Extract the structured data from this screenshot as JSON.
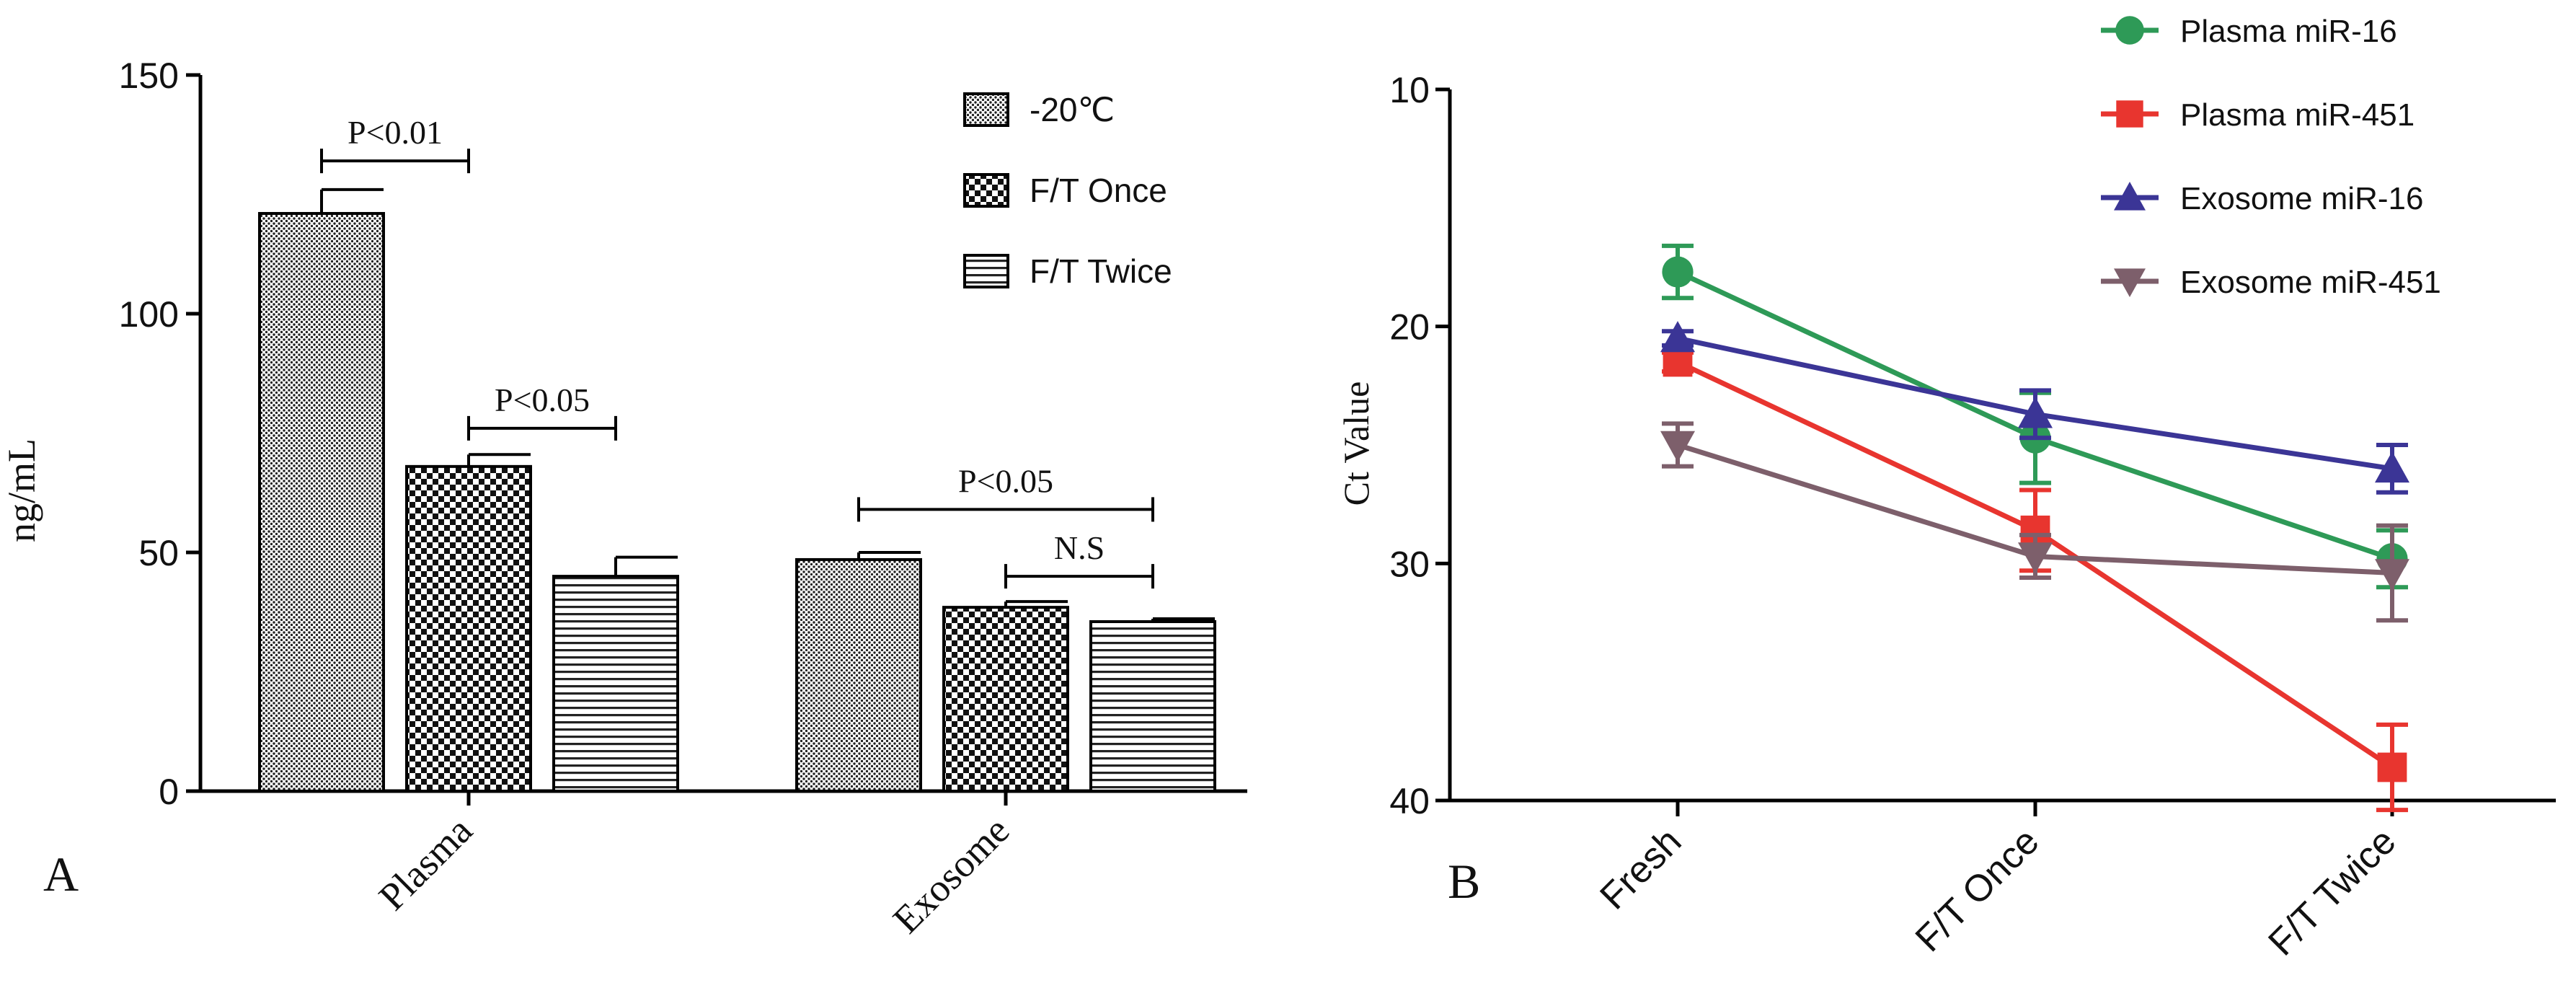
{
  "chart_data": [
    {
      "panel_label": "A",
      "type": "bar",
      "title": "",
      "xlabel": "",
      "ylabel": "ng/mL",
      "ylim": [
        0,
        150
      ],
      "yticks": [
        0,
        50,
        100,
        150
      ],
      "categories": [
        "Plasma",
        "Exosome"
      ],
      "series": [
        {
          "name": "-20℃",
          "values": [
            121,
            48.5
          ],
          "errors": [
            5,
            1.5
          ],
          "pattern": "dots"
        },
        {
          "name": "F/T Once",
          "values": [
            68,
            38.5
          ],
          "errors": [
            2.5,
            1.2
          ],
          "pattern": "checker"
        },
        {
          "name": "F/T Twice",
          "values": [
            45,
            35.5
          ],
          "errors": [
            4,
            0.6
          ],
          "pattern": "hlines"
        }
      ],
      "legend": "top-right",
      "annotations": [
        {
          "text": "P<0.01",
          "category": 0,
          "from": 0,
          "to": 1,
          "y": 132
        },
        {
          "text": "P<0.05",
          "category": 0,
          "from": 1,
          "to": 2,
          "y": 76
        },
        {
          "text": "P<0.05",
          "category": 1,
          "from": 0,
          "to": 2,
          "y": 59
        },
        {
          "text": "N.S",
          "category": 1,
          "from": 1,
          "to": 2,
          "y": 45
        }
      ]
    },
    {
      "panel_label": "B",
      "type": "line",
      "title": "",
      "xlabel": "",
      "ylabel": "Ct Value",
      "ylim": [
        10,
        40
      ],
      "y_inverted": true,
      "yticks": [
        10,
        20,
        30,
        40
      ],
      "categories": [
        "Fresh",
        "F/T Once",
        "F/T Twice"
      ],
      "series": [
        {
          "name": "Plasma miR-16",
          "color": "#2e9a57",
          "marker": "circle",
          "values": [
            17.7,
            24.7,
            29.8
          ],
          "errors": [
            1.1,
            1.9,
            1.2
          ]
        },
        {
          "name": "Plasma miR-451",
          "color": "#e8352f",
          "marker": "square",
          "values": [
            21.5,
            28.6,
            38.6
          ],
          "errors": [
            0.4,
            1.7,
            1.8
          ]
        },
        {
          "name": "Exosome miR-16",
          "color": "#3b3596",
          "marker": "triangle-up",
          "values": [
            20.5,
            23.7,
            26.0
          ],
          "errors": [
            0.3,
            1.0,
            1.0
          ]
        },
        {
          "name": "Exosome miR-451",
          "color": "#7d5f6b",
          "marker": "triangle-down",
          "values": [
            25.0,
            29.7,
            30.4
          ],
          "errors": [
            0.9,
            0.9,
            2.0
          ]
        }
      ],
      "legend": "top-right"
    }
  ]
}
